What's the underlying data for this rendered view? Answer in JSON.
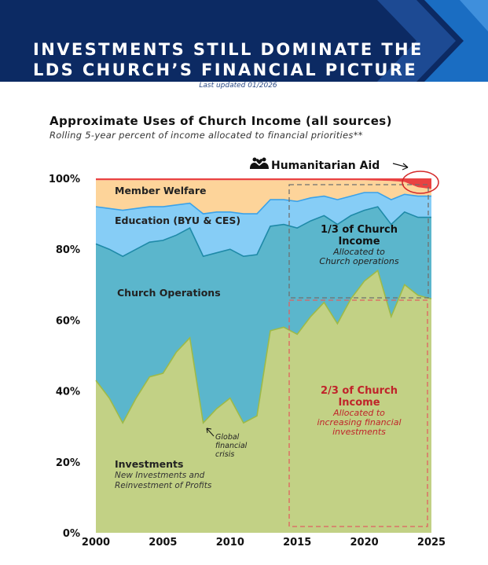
{
  "header": {
    "title_line1": "INVESTMENTS STILL DOMINATE THE",
    "title_line2": "LDS CHURCH’S FINANCIAL PICTURE",
    "updated": "Last updated 01/2026"
  },
  "colors": {
    "banner": "#0c2a63",
    "investments": "#c2d185",
    "investments_line": "#9dba48",
    "church_operations": "#5bb6cc",
    "church_operations_line": "#1f8aa8",
    "education": "#86cdf6",
    "education_line": "#3aa2ea",
    "member_welfare": "#fdd49a",
    "humanitarian_aid": "#e94242"
  },
  "chart_data": {
    "type": "area",
    "stacked": true,
    "title": "Approximate Uses of Church Income (all sources)",
    "subtitle": "Rolling 5-year percent of income allocated to financial priorities**",
    "x": [
      2000,
      2001,
      2002,
      2003,
      2004,
      2005,
      2006,
      2007,
      2008,
      2009,
      2010,
      2011,
      2012,
      2013,
      2014,
      2015,
      2016,
      2017,
      2018,
      2019,
      2020,
      2021,
      2022,
      2023,
      2024,
      2025
    ],
    "ylim": [
      0,
      100
    ],
    "yticks": [
      "0%",
      "20%",
      "40%",
      "60%",
      "80%",
      "100%"
    ],
    "xticks": [
      "2000",
      "2005",
      "2010",
      "2015",
      "2020",
      "2025"
    ],
    "series": [
      {
        "name": "Investments",
        "values": [
          43,
          38,
          31,
          38,
          44,
          45,
          51,
          55,
          31,
          35,
          38,
          31,
          33,
          57,
          58,
          56,
          61,
          65,
          59,
          66,
          71,
          74,
          61,
          70,
          67,
          66
        ]
      },
      {
        "name": "Church Operations",
        "values": [
          81.5,
          80,
          78,
          80,
          82,
          82.5,
          84,
          86,
          78,
          79,
          80,
          78,
          78.5,
          86.5,
          87,
          86,
          88,
          89.5,
          87,
          89.5,
          91,
          92,
          87,
          90.5,
          89,
          89
        ]
      },
      {
        "name": "Education (BYU & CES)",
        "values": [
          92,
          91.5,
          91,
          91.5,
          92,
          92,
          92.5,
          93,
          90,
          90.5,
          90.5,
          90,
          90,
          94,
          94,
          93.5,
          94.5,
          95,
          94,
          95,
          96,
          96,
          94,
          95.5,
          95,
          95
        ]
      },
      {
        "name": "Member Welfare",
        "values": [
          99.5,
          99.5,
          99.5,
          99.5,
          99.5,
          99.5,
          99.5,
          99.5,
          99.5,
          99.5,
          99.5,
          99.5,
          99.5,
          99.5,
          99.5,
          99.5,
          99.5,
          99.5,
          99.5,
          99.5,
          99.5,
          99.4,
          99.3,
          99,
          97.5,
          97
        ]
      },
      {
        "name": "Humanitarian Aid",
        "values": [
          100,
          100,
          100,
          100,
          100,
          100,
          100,
          100,
          100,
          100,
          100,
          100,
          100,
          100,
          100,
          100,
          100,
          100,
          100,
          100,
          100,
          100,
          100,
          100,
          100,
          100
        ]
      }
    ],
    "labels": {
      "member_welfare": "Member Welfare",
      "education": "Education (BYU & CES)",
      "church_operations": "Church Operations",
      "investments": "Investments",
      "investments_sub1": "New Investments and",
      "investments_sub2": "Reinvestment of Profits",
      "humanitarian": "Humanitarian Aid",
      "crisis1": "Global",
      "crisis2": "financial",
      "crisis3": "crisis",
      "third1": "1/3 of Church",
      "third2": "Income",
      "third3": "Allocated to",
      "third4": "Church operations",
      "twothird1": "2/3 of Church",
      "twothird2": "Income",
      "twothird3": "Allocated to",
      "twothird4": "increasing financial",
      "twothird5": "investments"
    }
  }
}
